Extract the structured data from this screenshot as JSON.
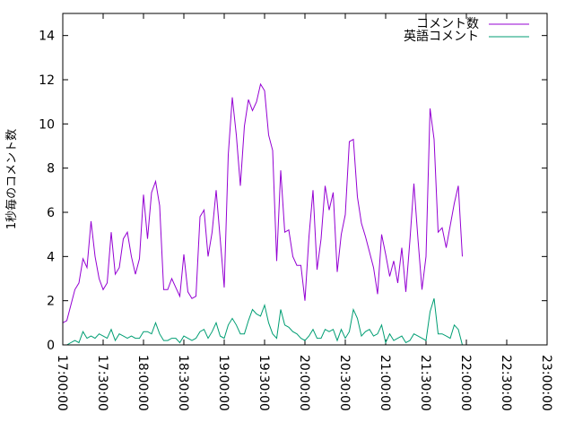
{
  "chart_data": {
    "type": "line",
    "title": "",
    "xlabel": "",
    "ylabel": "1秒毎のコメント数",
    "ylim": [
      0,
      15
    ],
    "yticks": [
      0,
      2,
      4,
      6,
      8,
      10,
      12,
      14
    ],
    "xlim_labels": [
      "17:00:00",
      "23:00:00"
    ],
    "xticks": [
      "17:00:00",
      "17:30:00",
      "18:00:00",
      "18:30:00",
      "19:00:00",
      "19:30:00",
      "20:00:00",
      "20:30:00",
      "21:00:00",
      "21:30:00",
      "22:00:00",
      "22:30:00",
      "23:00:00"
    ],
    "grid": false,
    "legend_position": "top-right",
    "sample_interval_minutes": 3,
    "series": [
      {
        "name": "コメント数",
        "color": "#9400d3",
        "values": [
          1.0,
          1.1,
          1.8,
          2.5,
          2.8,
          3.9,
          3.5,
          5.6,
          4.0,
          3.0,
          2.5,
          2.8,
          5.1,
          3.2,
          3.5,
          4.8,
          5.1,
          4.0,
          3.2,
          3.9,
          6.8,
          4.8,
          6.9,
          7.4,
          6.3,
          2.5,
          2.5,
          3.0,
          2.6,
          2.2,
          4.1,
          2.4,
          2.1,
          2.2,
          5.8,
          6.1,
          4.0,
          5.1,
          7.0,
          4.8,
          2.6,
          8.6,
          11.2,
          9.5,
          7.2,
          9.9,
          11.1,
          10.6,
          11.0,
          11.8,
          11.5,
          9.5,
          8.8,
          3.8,
          7.9,
          5.1,
          5.2,
          4.0,
          3.6,
          3.6,
          2.0,
          4.9,
          7.0,
          3.4,
          4.8,
          7.2,
          6.1,
          6.9,
          3.3,
          5.0,
          5.9,
          9.2,
          9.3,
          6.7,
          5.5,
          4.9,
          4.2,
          3.5,
          2.3,
          5.0,
          4.1,
          3.1,
          3.8,
          2.8,
          4.4,
          2.4,
          4.7,
          7.3,
          4.8,
          2.5,
          4.0,
          10.7,
          9.3,
          5.1,
          5.3,
          4.4,
          5.4,
          6.4,
          7.2,
          4.0
        ]
      },
      {
        "name": "英語コメント",
        "color": "#009e73",
        "values": [
          0.0,
          0.0,
          0.1,
          0.2,
          0.1,
          0.6,
          0.3,
          0.4,
          0.3,
          0.5,
          0.4,
          0.3,
          0.7,
          0.2,
          0.5,
          0.4,
          0.3,
          0.4,
          0.3,
          0.3,
          0.6,
          0.6,
          0.5,
          1.0,
          0.5,
          0.2,
          0.2,
          0.3,
          0.3,
          0.1,
          0.4,
          0.3,
          0.2,
          0.3,
          0.6,
          0.7,
          0.3,
          0.6,
          1.0,
          0.4,
          0.3,
          0.9,
          1.2,
          0.9,
          0.5,
          0.5,
          1.1,
          1.6,
          1.4,
          1.3,
          1.8,
          1.0,
          0.5,
          0.3,
          1.6,
          0.9,
          0.8,
          0.6,
          0.5,
          0.3,
          0.2,
          0.4,
          0.7,
          0.3,
          0.3,
          0.7,
          0.6,
          0.7,
          0.2,
          0.7,
          0.3,
          0.6,
          1.6,
          1.2,
          0.4,
          0.6,
          0.7,
          0.4,
          0.5,
          0.9,
          0.1,
          0.5,
          0.2,
          0.3,
          0.4,
          0.1,
          0.2,
          0.5,
          0.4,
          0.3,
          0.2,
          1.5,
          2.1,
          0.5,
          0.5,
          0.4,
          0.3,
          0.9,
          0.7,
          0.0
        ]
      }
    ]
  }
}
